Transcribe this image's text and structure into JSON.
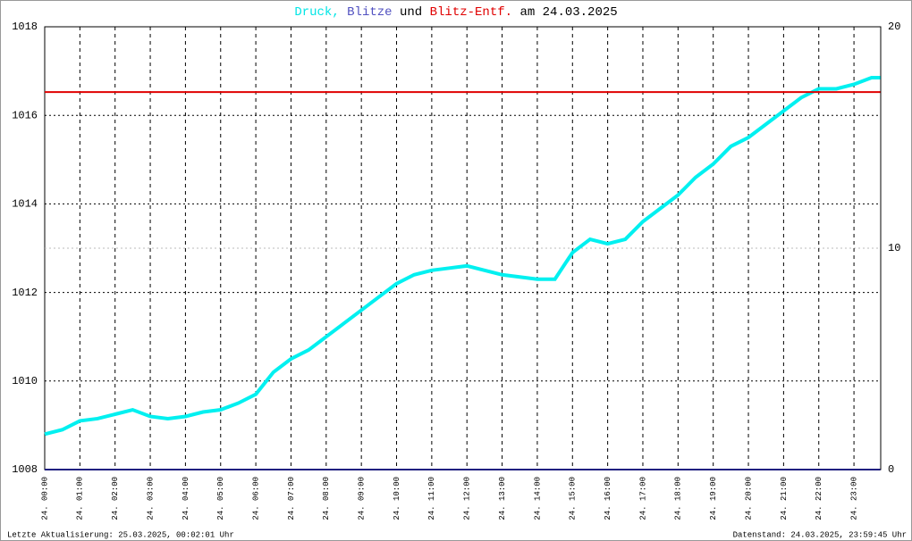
{
  "chart_data": {
    "type": "line",
    "title_parts": [
      {
        "text": "Druck,",
        "color": "#00e5e5"
      },
      {
        "text": "Blitze",
        "color": "#5050c0"
      },
      {
        "text": "und",
        "color": "#000000"
      },
      {
        "text": "Blitz-Entf.",
        "color": "#e00000"
      },
      {
        "text": "am 24.03.2025",
        "color": "#000000"
      }
    ],
    "footer_left": "Letzte Aktualisierung: 25.03.2025, 00:02:01 Uhr",
    "footer_right": "Datenstand: 24.03.2025, 23:59:45 Uhr",
    "x": [
      0,
      0.5,
      1,
      1.5,
      2,
      2.5,
      3,
      3.5,
      4,
      4.5,
      5,
      5.5,
      6,
      6.5,
      7,
      7.5,
      8,
      8.5,
      9,
      9.5,
      10,
      10.5,
      11,
      11.5,
      12,
      12.5,
      13,
      13.5,
      14,
      14.5,
      15,
      15.5,
      16,
      16.5,
      17,
      17.5,
      18,
      18.5,
      19,
      19.5,
      20,
      20.5,
      21,
      21.5,
      22,
      22.5,
      23,
      23.5,
      23.75
    ],
    "series": [
      {
        "color": "#00f0f0",
        "values": [
          1008.8,
          1008.9,
          1009.1,
          1009.15,
          1009.25,
          1009.35,
          1009.2,
          1009.15,
          1009.2,
          1009.3,
          1009.35,
          1009.5,
          1009.7,
          1010.2,
          1010.5,
          1010.7,
          1011.0,
          1011.3,
          1011.6,
          1011.9,
          1012.2,
          1012.4,
          1012.5,
          1012.55,
          1012.6,
          1012.5,
          1012.4,
          1012.35,
          1012.3,
          1012.3,
          1012.9,
          1013.2,
          1013.1,
          1013.2,
          1013.6,
          1013.9,
          1014.2,
          1014.6,
          1014.9,
          1015.3,
          1015.5,
          1015.8,
          1016.1,
          1016.4,
          1016.6,
          1016.6,
          1016.7,
          1016.85,
          1016.85
        ],
        "width": 4
      },
      {
        "color": "#202080",
        "axis": "y2",
        "values": [
          0,
          0,
          0,
          0,
          0,
          0,
          0,
          0,
          0,
          0,
          0,
          0,
          0,
          0,
          0,
          0,
          0,
          0,
          0,
          0,
          0,
          0,
          0,
          0,
          0,
          0,
          0,
          0,
          0,
          0,
          0,
          0,
          0,
          0,
          0,
          0,
          0,
          0,
          0,
          0,
          0,
          0,
          0,
          0,
          0,
          0,
          0,
          0,
          0
        ],
        "width": 2
      },
      {
        "color": "#e00000",
        "axis": "y2",
        "values": [
          17.05,
          17.05,
          17.05,
          17.05,
          17.05,
          17.05,
          17.05,
          17.05,
          17.05,
          17.05,
          17.05,
          17.05,
          17.05,
          17.05,
          17.05,
          17.05,
          17.05,
          17.05,
          17.05,
          17.05,
          17.05,
          17.05,
          17.05,
          17.05,
          17.05,
          17.05,
          17.05,
          17.05,
          17.05,
          17.05,
          17.05,
          17.05,
          17.05,
          17.05,
          17.05,
          17.05,
          17.05,
          17.05,
          17.05,
          17.05,
          17.05,
          17.05,
          17.05,
          17.05,
          17.05,
          17.05,
          17.05,
          17.05,
          17.05
        ],
        "width": 2
      }
    ],
    "xlim": [
      0,
      23.76
    ],
    "xticks": [
      {
        "value": 0,
        "label": "24. 00:00"
      },
      {
        "value": 1,
        "label": "24. 01:00"
      },
      {
        "value": 2,
        "label": "24. 02:00"
      },
      {
        "value": 3,
        "label": "24. 03:00"
      },
      {
        "value": 4,
        "label": "24. 04:00"
      },
      {
        "value": 5,
        "label": "24. 05:00"
      },
      {
        "value": 6,
        "label": "24. 06:00"
      },
      {
        "value": 7,
        "label": "24. 07:00"
      },
      {
        "value": 8,
        "label": "24. 08:00"
      },
      {
        "value": 9,
        "label": "24. 09:00"
      },
      {
        "value": 10,
        "label": "24. 10:00"
      },
      {
        "value": 11,
        "label": "24. 11:00"
      },
      {
        "value": 12,
        "label": "24. 12:00"
      },
      {
        "value": 13,
        "label": "24. 13:00"
      },
      {
        "value": 14,
        "label": "24. 14:00"
      },
      {
        "value": 15,
        "label": "24. 15:00"
      },
      {
        "value": 16,
        "label": "24. 16:00"
      },
      {
        "value": 17,
        "label": "24. 17:00"
      },
      {
        "value": 18,
        "label": "24. 18:00"
      },
      {
        "value": 19,
        "label": "24. 19:00"
      },
      {
        "value": 20,
        "label": "24. 20:00"
      },
      {
        "value": 21,
        "label": "24. 21:00"
      },
      {
        "value": 22,
        "label": "24. 22:00"
      },
      {
        "value": 23,
        "label": "24. 23:00"
      }
    ],
    "ylim": [
      1008,
      1018
    ],
    "yticks": [
      1008,
      1010,
      1012,
      1014,
      1016,
      1018
    ],
    "y2lim": [
      0,
      20
    ],
    "y2ticks": [
      0,
      10,
      20
    ],
    "y2tick_color": [
      "#000000",
      "#e00000",
      "#000000"
    ],
    "grid": true
  }
}
